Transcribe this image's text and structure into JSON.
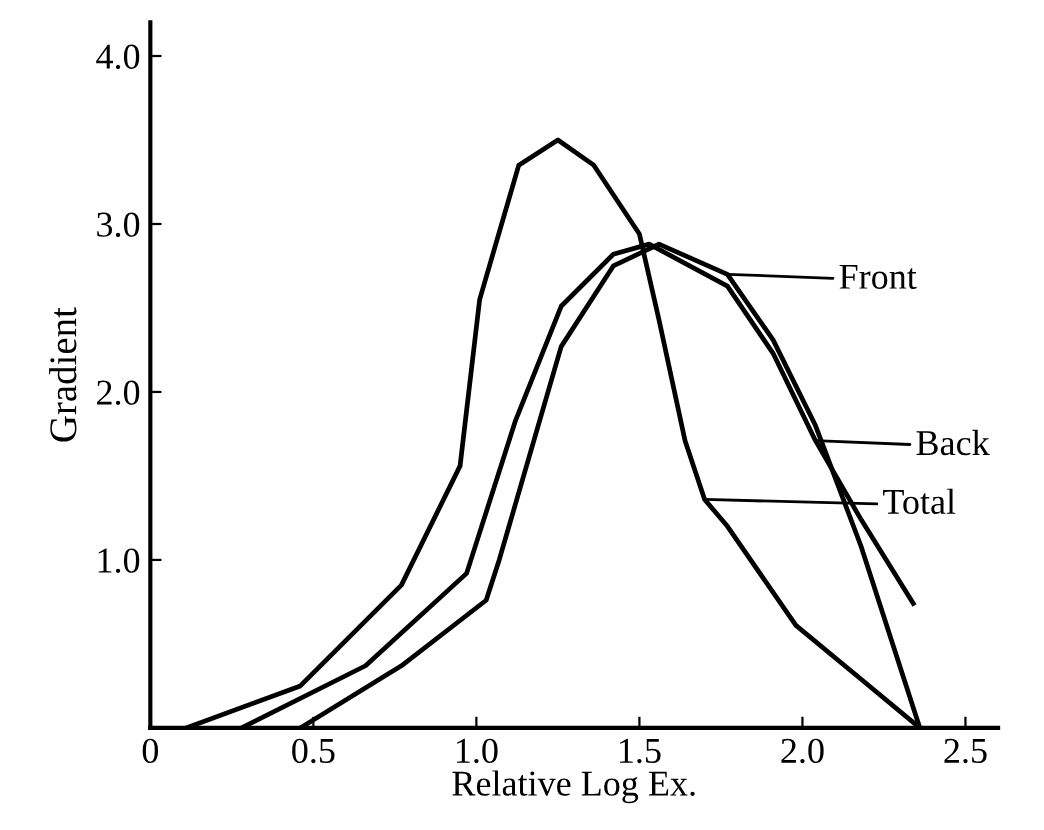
{
  "chart_data": {
    "type": "line",
    "xlabel": "Relative Log Ex.",
    "ylabel": "Gradient",
    "xlim": [
      0,
      2.6
    ],
    "ylim": [
      0,
      4.2
    ],
    "xticks": [
      {
        "value": 0,
        "label": "0"
      },
      0.5,
      {
        "value": 1,
        "label": "1.0"
      },
      1.5,
      {
        "value": 2,
        "label": "2.0"
      },
      2.5
    ],
    "yticks": [
      {
        "value": 1,
        "label": "1.0"
      },
      {
        "value": 2,
        "label": "2.0"
      },
      {
        "value": 3,
        "label": "3.0"
      },
      {
        "value": 4,
        "label": "4.0"
      }
    ],
    "grid": false,
    "legend": "right",
    "marker": "none",
    "line_style": "solid",
    "series": [
      {
        "name": "Front",
        "color": "#000000",
        "x": [
          0.46,
          0.77,
          1.03,
          1.07,
          1.26,
          1.42,
          1.56,
          1.77,
          1.91,
          2.04,
          2.18,
          2.36
        ],
        "values": [
          0,
          0.37,
          0.76,
          1.0,
          2.27,
          2.75,
          2.88,
          2.7,
          2.31,
          1.8,
          1.08,
          0
        ]
      },
      {
        "name": "Back",
        "color": "#000000",
        "x": [
          0.28,
          0.66,
          0.97,
          1.12,
          1.26,
          1.42,
          1.53,
          1.77,
          1.91,
          2.04,
          2.18,
          2.34
        ],
        "values": [
          0,
          0.37,
          0.92,
          1.83,
          2.51,
          2.82,
          2.88,
          2.63,
          2.23,
          1.71,
          1.24,
          0.74
        ]
      },
      {
        "name": "Total",
        "color": "#000000",
        "x": [
          0.11,
          0.46,
          0.77,
          0.95,
          1.01,
          1.13,
          1.25,
          1.36,
          1.5,
          1.56,
          1.64,
          1.7,
          1.77,
          1.98,
          2.18,
          2.36
        ],
        "values": [
          0,
          0.25,
          0.85,
          1.56,
          2.55,
          3.35,
          3.5,
          3.35,
          2.94,
          2.43,
          1.71,
          1.36,
          1.2,
          0.61,
          0.29,
          0
        ]
      }
    ]
  }
}
